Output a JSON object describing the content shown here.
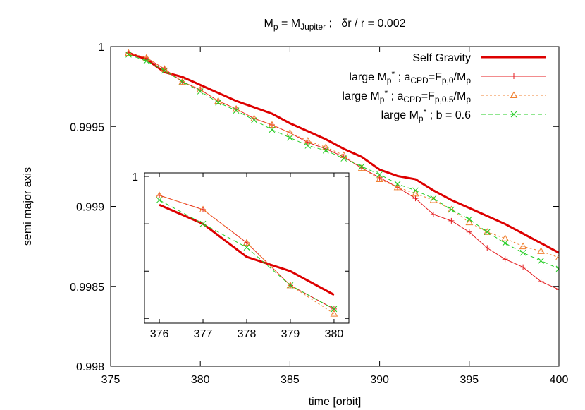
{
  "chart_data": [
    {
      "type": "line",
      "title": [
        [
          "M"
        ],
        [
          "p",
          "sub"
        ],
        [
          " = M"
        ],
        [
          "Jupiter",
          "sub"
        ],
        [
          " ;   δr / r = 0.002"
        ]
      ],
      "x_label": "time [orbit]",
      "y_label": "semi major axis",
      "xlim": [
        375,
        400
      ],
      "xticks": [
        375,
        380,
        385,
        390,
        395,
        400
      ],
      "ylim": [
        0.998,
        1
      ],
      "yticks": [
        0.998,
        0.9985,
        0.999,
        0.9995,
        1
      ],
      "legend": "top-right",
      "x": [
        376,
        377,
        378,
        379,
        380,
        381,
        382,
        383,
        384,
        385,
        386,
        387,
        388,
        389,
        390,
        391,
        392,
        393,
        394,
        395,
        396,
        397,
        398,
        399,
        400
      ],
      "series": [
        {
          "name": [
            [
              "Self Gravity"
            ]
          ],
          "color": "#dd0000",
          "width": 3,
          "dash": "none",
          "marker": "none",
          "values": [
            0.99996,
            0.99992,
            0.99984,
            0.99981,
            0.99976,
            0.99971,
            0.99966,
            0.99962,
            0.99958,
            0.99952,
            0.99947,
            0.99942,
            0.99936,
            0.99931,
            0.99923,
            0.99919,
            0.99917,
            0.9991,
            0.99904,
            0.99899,
            0.99894,
            0.99889,
            0.99883,
            0.99877,
            0.99871
          ]
        },
        {
          "name": [
            [
              "large M"
            ],
            [
              "p",
              "sub"
            ],
            [
              "*",
              "sup"
            ],
            [
              " ; a"
            ],
            [
              "CPD",
              "sub"
            ],
            [
              "=F"
            ],
            [
              "p,0",
              "sub"
            ],
            [
              "/M"
            ],
            [
              "p",
              "sub"
            ]
          ],
          "color": "#e41a1c",
          "width": 1,
          "dash": "none",
          "marker": "plus",
          "values": [
            0.99996,
            0.99993,
            0.99986,
            0.99978,
            0.99973,
            0.99966,
            0.99961,
            0.99955,
            0.99951,
            0.99946,
            0.9994,
            0.99936,
            0.99931,
            0.99924,
            0.99918,
            0.99912,
            0.99905,
            0.99895,
            0.99891,
            0.99884,
            0.99874,
            0.99867,
            0.99862,
            0.99853,
            0.99848
          ]
        },
        {
          "name": [
            [
              "large M"
            ],
            [
              "p",
              "sub"
            ],
            [
              "*",
              "sup"
            ],
            [
              " ; a"
            ],
            [
              "CPD",
              "sub"
            ],
            [
              "=F"
            ],
            [
              "p,0.5",
              "sub"
            ],
            [
              "/M"
            ],
            [
              "p",
              "sub"
            ]
          ],
          "color": "#f08030",
          "width": 1,
          "dash": "3,3",
          "marker": "triangle",
          "values": [
            0.99996,
            0.99993,
            0.99986,
            0.99978,
            0.99973,
            0.99966,
            0.99961,
            0.99955,
            0.99951,
            0.99946,
            0.99941,
            0.99937,
            0.99932,
            0.99924,
            0.99917,
            0.99912,
            0.99908,
            0.99904,
            0.99898,
            0.9989,
            0.99884,
            0.9988,
            0.99875,
            0.99872,
            0.99868
          ]
        },
        {
          "name": [
            [
              "large M"
            ],
            [
              "p",
              "sub"
            ],
            [
              "*",
              "sup"
            ],
            [
              " ; b = 0.6"
            ]
          ],
          "color": "#22cc22",
          "width": 1,
          "dash": "6,4",
          "marker": "cross",
          "values": [
            0.99995,
            0.99991,
            0.99985,
            0.99978,
            0.99972,
            0.99965,
            0.9996,
            0.99954,
            0.99948,
            0.99943,
            0.99938,
            0.99935,
            0.9993,
            0.99925,
            0.9992,
            0.99914,
            0.9991,
            0.99905,
            0.99898,
            0.99892,
            0.99884,
            0.99877,
            0.99871,
            0.99866,
            0.99861
          ]
        }
      ]
    },
    {
      "type": "line",
      "xlim": [
        375.66,
        380.34
      ],
      "xticks": [
        376,
        377,
        378,
        379,
        380
      ],
      "ylim": [
        0.99969,
        1.0000075
      ],
      "yticks": [
        1
      ],
      "yminor_ticks": [
        0.9999,
        0.9998,
        0.9997
      ],
      "x": [
        376,
        377,
        378,
        379,
        380
      ],
      "series": [
        {
          "color": "#dd0000",
          "width": 3,
          "dash": "none",
          "marker": "none",
          "values": [
            0.99994,
            0.9999,
            0.99983,
            0.9998,
            0.99975
          ]
        },
        {
          "color": "#e41a1c",
          "width": 1,
          "dash": "none",
          "marker": "plus",
          "values": [
            0.99996,
            0.99993,
            0.99986,
            0.99977,
            0.99972
          ]
        },
        {
          "color": "#f08030",
          "width": 1,
          "dash": "3,3",
          "marker": "triangle",
          "values": [
            0.99996,
            0.99993,
            0.99986,
            0.99977,
            0.99971
          ]
        },
        {
          "color": "#22cc22",
          "width": 1,
          "dash": "6,4",
          "marker": "cross",
          "values": [
            0.99995,
            0.9999,
            0.99985,
            0.99977,
            0.99972
          ]
        }
      ]
    }
  ]
}
